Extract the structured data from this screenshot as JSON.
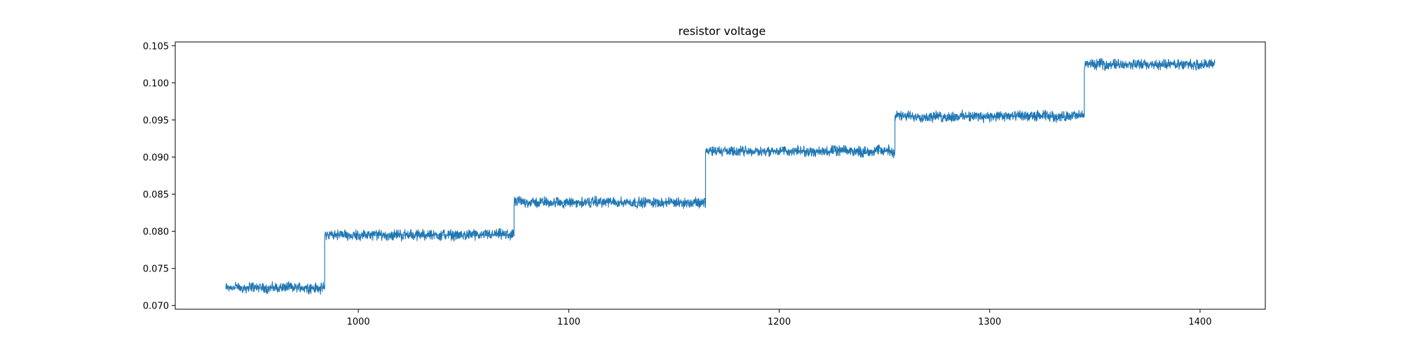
{
  "chart_data": {
    "type": "line",
    "title": "resistor voltage",
    "xlabel": "",
    "ylabel": "",
    "xlim": [
      913,
      1431
    ],
    "ylim": [
      0.0695,
      0.1055
    ],
    "xticks": [
      1000,
      1100,
      1200,
      1300,
      1400
    ],
    "xtick_labels": [
      "1000",
      "1100",
      "1200",
      "1300",
      "1400"
    ],
    "yticks": [
      0.07,
      0.075,
      0.08,
      0.085,
      0.09,
      0.095,
      0.1,
      0.105
    ],
    "ytick_labels": [
      "0.070",
      "0.075",
      "0.080",
      "0.085",
      "0.090",
      "0.095",
      "0.100",
      "0.105"
    ],
    "grid": false,
    "legend": "none",
    "series": [
      {
        "color": "#1f77b4",
        "noise_band": 0.0012,
        "segments": [
          {
            "x_start": 937,
            "x_end": 984,
            "y": 0.0724
          },
          {
            "x_start": 984,
            "x_end": 1074,
            "y": 0.0795
          },
          {
            "x_start": 1074,
            "x_end": 1165,
            "y": 0.0839
          },
          {
            "x_start": 1165,
            "x_end": 1255,
            "y": 0.0908
          },
          {
            "x_start": 1255,
            "x_end": 1345,
            "y": 0.0955
          },
          {
            "x_start": 1345,
            "x_end": 1407,
            "y": 0.1025
          }
        ]
      }
    ]
  }
}
